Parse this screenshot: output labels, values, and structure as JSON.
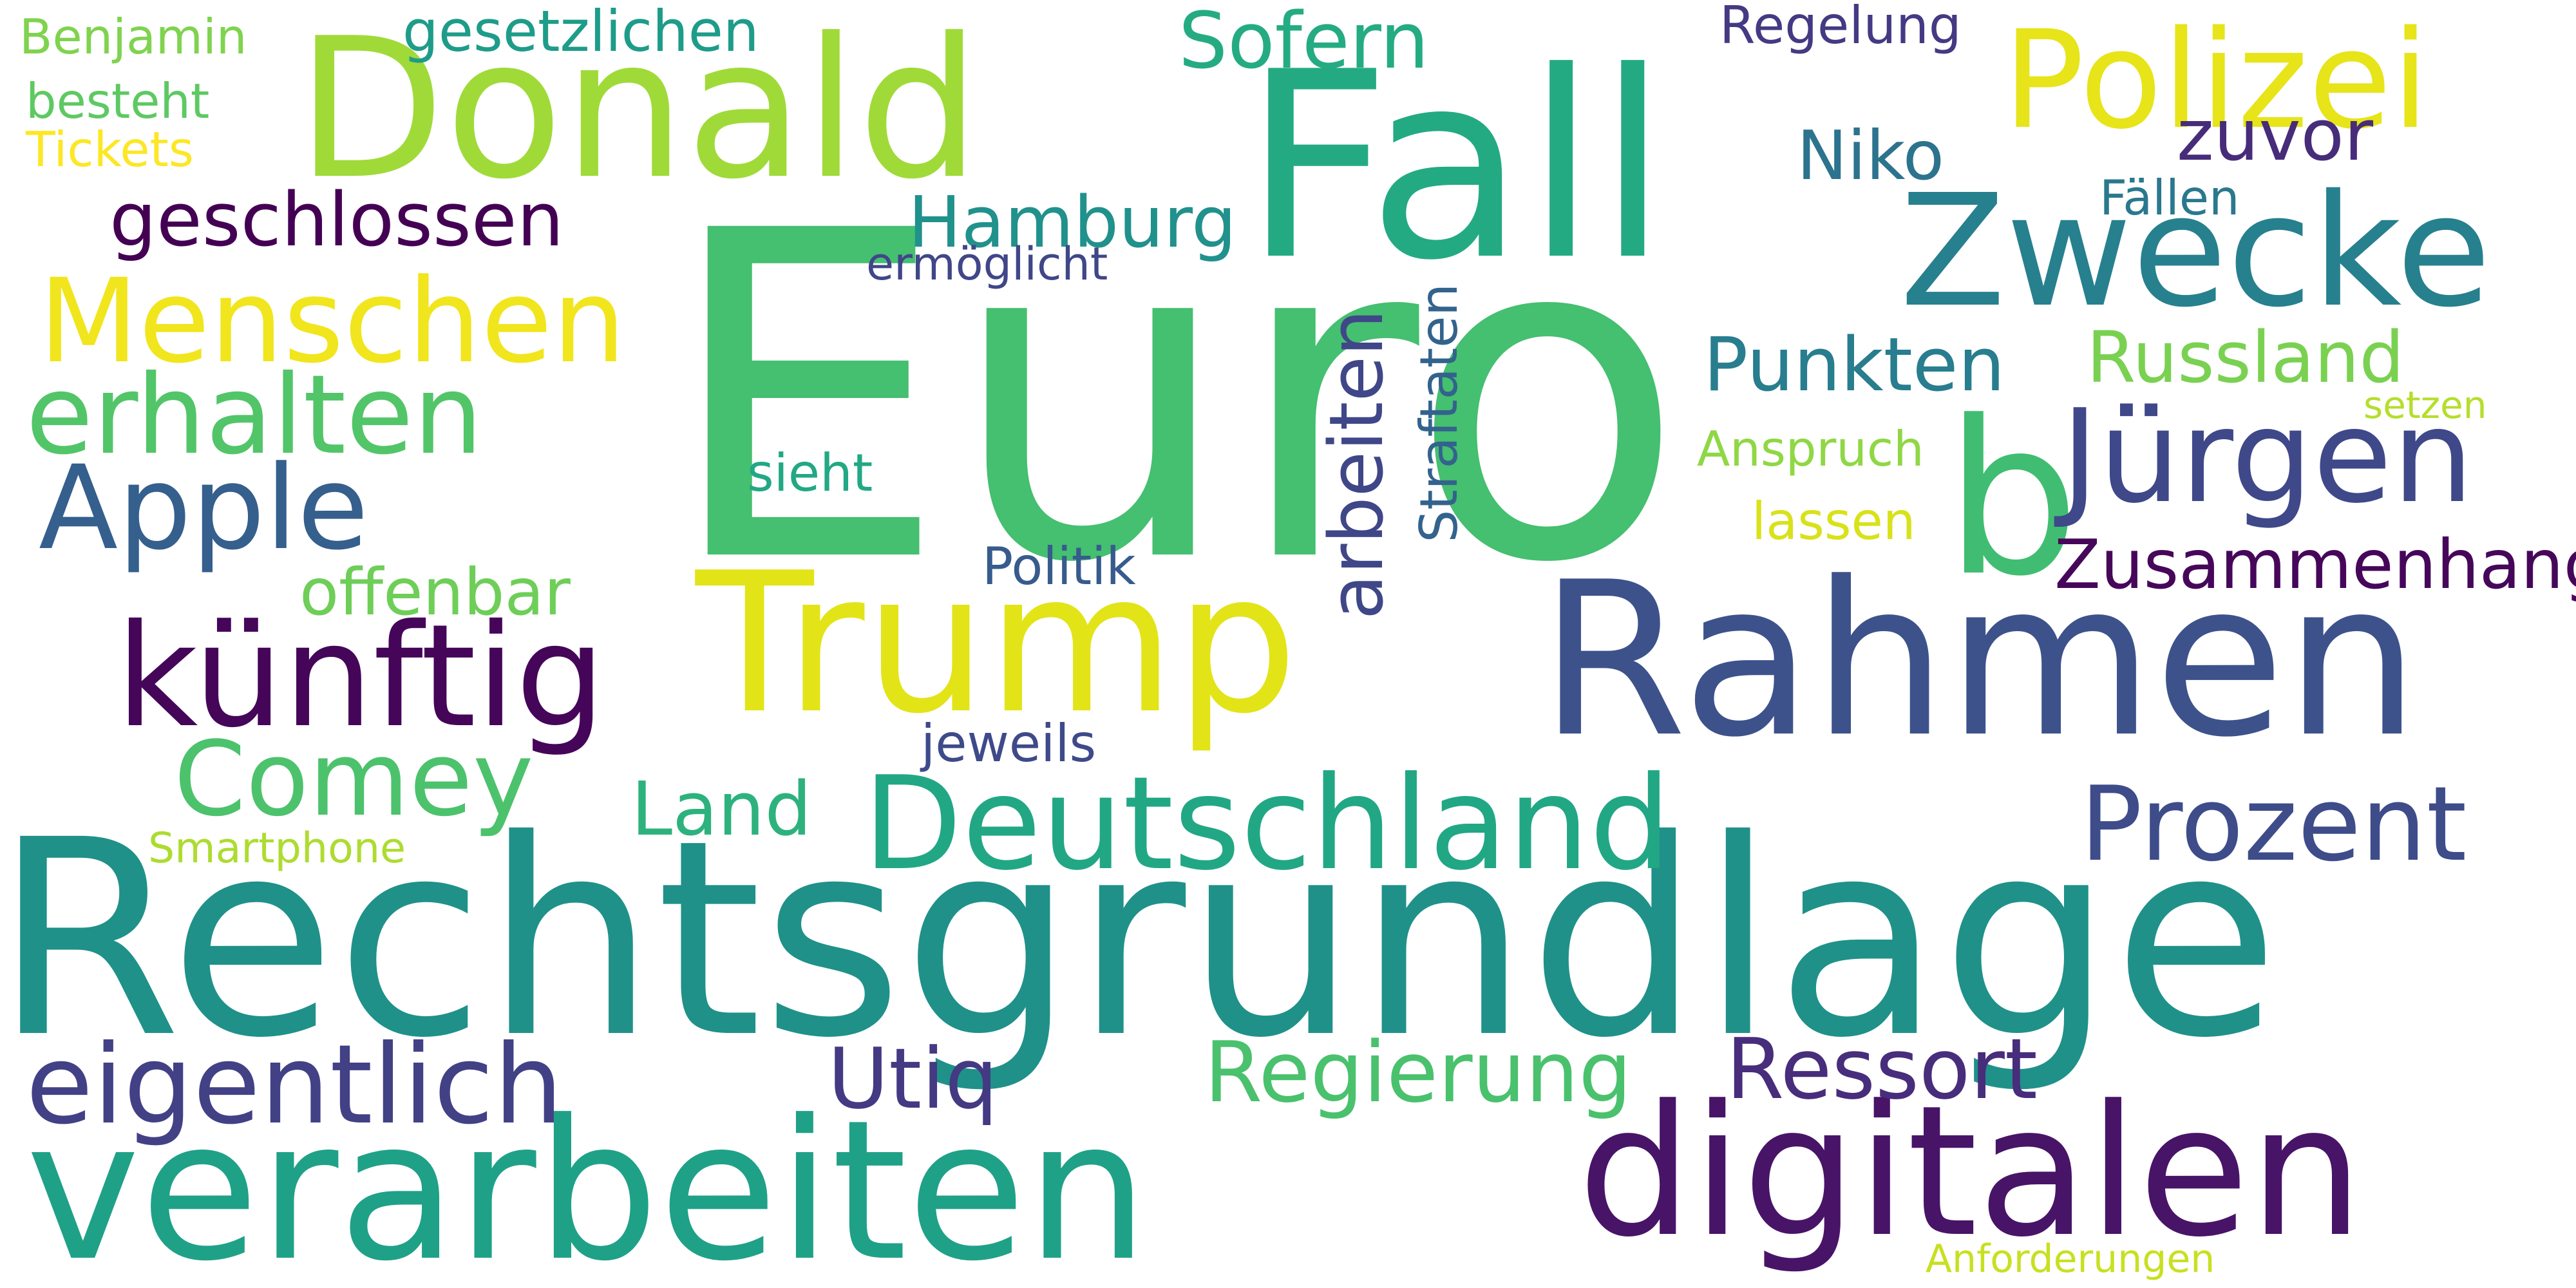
{
  "word_cloud": {
    "words": [
      {
        "text": "Euro",
        "color": "#45bf70"
      },
      {
        "text": "Rechtsgrundlage",
        "color": "#1f9189"
      },
      {
        "text": "Fall",
        "color": "#24aa83"
      },
      {
        "text": "Rahmen",
        "color": "#3d528b"
      },
      {
        "text": "Donald",
        "color": "#a0da39"
      },
      {
        "text": "Trump",
        "color": "#e2e418"
      },
      {
        "text": "verarbeiten",
        "color": "#1fa187"
      },
      {
        "text": "digitalen",
        "color": "#481467"
      },
      {
        "text": "Zwecke",
        "color": "#27808e"
      },
      {
        "text": "Polizei",
        "color": "#e7e419"
      },
      {
        "text": "b",
        "color": "#40bd72"
      },
      {
        "text": "Deutschland",
        "color": "#22a785"
      },
      {
        "text": "künftig",
        "color": "#450559"
      },
      {
        "text": "Jürgen",
        "color": "#3f4889"
      },
      {
        "text": "Menschen",
        "color": "#f1e51d"
      },
      {
        "text": "Apple",
        "color": "#355f8d"
      },
      {
        "text": "erhalten",
        "color": "#52c569"
      },
      {
        "text": "eigentlich",
        "color": "#424186"
      },
      {
        "text": "Prozent",
        "color": "#3e4c8a"
      },
      {
        "text": "Comey",
        "color": "#4cc26c"
      },
      {
        "text": "geschlossen",
        "color": "#440154"
      },
      {
        "text": "arbeiten",
        "color": "#3f4788"
      },
      {
        "text": "Ressort",
        "color": "#472d7b"
      },
      {
        "text": "Regierung",
        "color": "#4ac16d"
      },
      {
        "text": "Utiq",
        "color": "#443983"
      },
      {
        "text": "Sofern",
        "color": "#25ab82"
      },
      {
        "text": "Zusammenhang",
        "color": "#46075a"
      },
      {
        "text": "Punkten",
        "color": "#287d8e"
      },
      {
        "text": "Russland",
        "color": "#7ad151"
      },
      {
        "text": "Hamburg",
        "color": "#21918c"
      },
      {
        "text": "Land",
        "color": "#2db27d"
      },
      {
        "text": "zuvor",
        "color": "#472c7a"
      },
      {
        "text": "Niko",
        "color": "#2c738e"
      },
      {
        "text": "offenbar",
        "color": "#6ece58"
      },
      {
        "text": "gesetzlichen",
        "color": "#1e9c89"
      },
      {
        "text": "Straftaten",
        "color": "#33638d"
      },
      {
        "text": "Politik",
        "color": "#375b8d"
      },
      {
        "text": "jeweils",
        "color": "#3e4a89"
      },
      {
        "text": "sieht",
        "color": "#22a884"
      },
      {
        "text": "Regelung",
        "color": "#443a83"
      },
      {
        "text": "lassen",
        "color": "#d8e219"
      },
      {
        "text": "Anspruch",
        "color": "#8fd744"
      },
      {
        "text": "Fällen",
        "color": "#2a788e"
      },
      {
        "text": "ermöglicht",
        "color": "#404688"
      },
      {
        "text": "besteht",
        "color": "#5ec962"
      },
      {
        "text": "Benjamin",
        "color": "#7fd34e"
      },
      {
        "text": "Tickets",
        "color": "#fde725"
      },
      {
        "text": "Smartphone",
        "color": "#addc30"
      },
      {
        "text": "setzen",
        "color": "#b5de2b"
      },
      {
        "text": "Anforderungen",
        "color": "#c8e020"
      }
    ]
  }
}
